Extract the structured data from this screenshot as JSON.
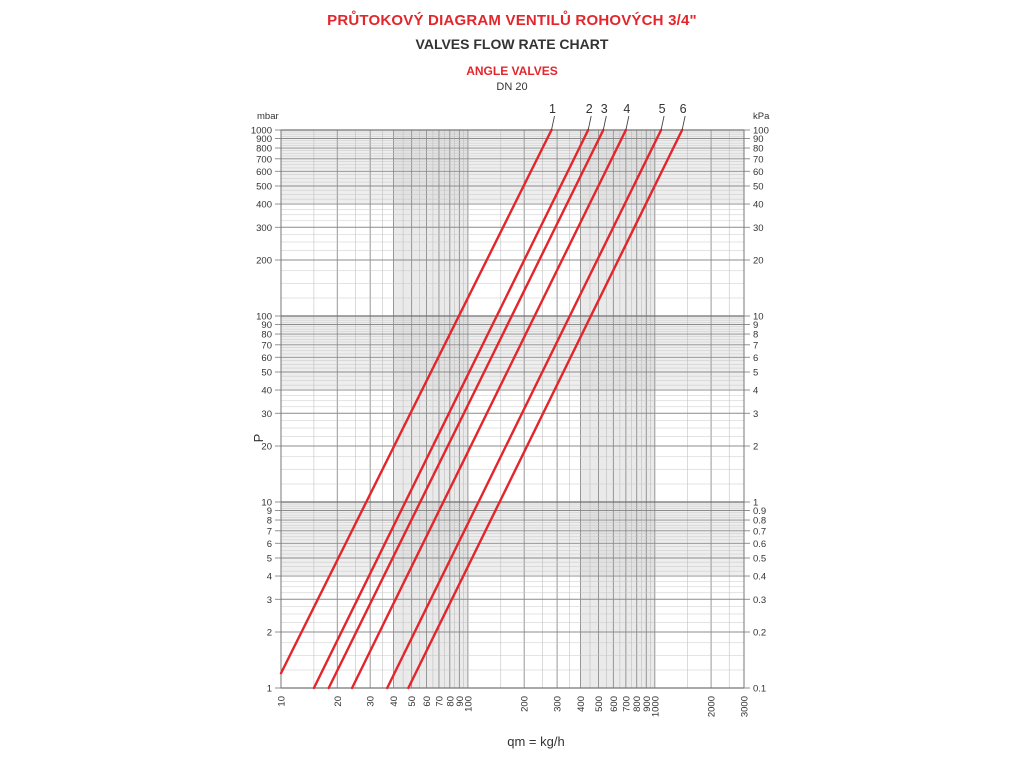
{
  "header": {
    "title_cz": "PRŮTOKOVÝ DIAGRAM VENTILŮ ROHOVÝCH 3/4\"",
    "title_en": "VALVES FLOW RATE CHART",
    "subtitle": "ANGLE VALVES",
    "dn": "DN 20"
  },
  "chart_data": {
    "type": "line",
    "title": "VALVES FLOW RATE CHART",
    "xlabel": "qm = kg/h",
    "ylabel": "P",
    "left_unit": "mbar",
    "right_unit": "kPa",
    "x_scale": "log",
    "y_scale": "log",
    "xlim": [
      10,
      3000
    ],
    "ylim": [
      1,
      1000
    ],
    "grid": true,
    "x_ticks": [
      10,
      20,
      30,
      40,
      50,
      60,
      70,
      80,
      90,
      100,
      200,
      300,
      400,
      500,
      600,
      700,
      800,
      900,
      1000,
      2000,
      3000
    ],
    "y_ticks_left": [
      "1",
      "2",
      "3",
      "4",
      "5",
      "6",
      "7",
      "8",
      "9",
      "10",
      "20",
      "30",
      "40",
      "50",
      "60",
      "70",
      "80",
      "90",
      "100",
      "200",
      "300",
      "400",
      "500",
      "600",
      "700",
      "800",
      "900",
      "1000"
    ],
    "y_ticks_right": [
      "0.1",
      "0.2",
      "0.3",
      "0.4",
      "0.5",
      "0.6",
      "0.7",
      "0.8",
      "0.9",
      "1",
      "2",
      "3",
      "4",
      "5",
      "6",
      "7",
      "8",
      "9",
      "10",
      "20",
      "30",
      "40",
      "50",
      "60",
      "70",
      "80",
      "90",
      "100"
    ],
    "series": [
      {
        "name": "1",
        "x": [
          10,
          280
        ],
        "y": [
          1.2,
          1000
        ],
        "color": "#e3262c"
      },
      {
        "name": "2",
        "x": [
          15,
          440
        ],
        "y": [
          1,
          1000
        ],
        "color": "#e3262c"
      },
      {
        "name": "3",
        "x": [
          18,
          530
        ],
        "y": [
          1,
          1000
        ],
        "color": "#e3262c"
      },
      {
        "name": "4",
        "x": [
          24,
          700
        ],
        "y": [
          1,
          1000
        ],
        "color": "#e3262c"
      },
      {
        "name": "5",
        "x": [
          37,
          1080
        ],
        "y": [
          1,
          1000
        ],
        "color": "#e3262c"
      },
      {
        "name": "6",
        "x": [
          48,
          1400
        ],
        "y": [
          1,
          1000
        ],
        "color": "#e3262c"
      }
    ]
  }
}
